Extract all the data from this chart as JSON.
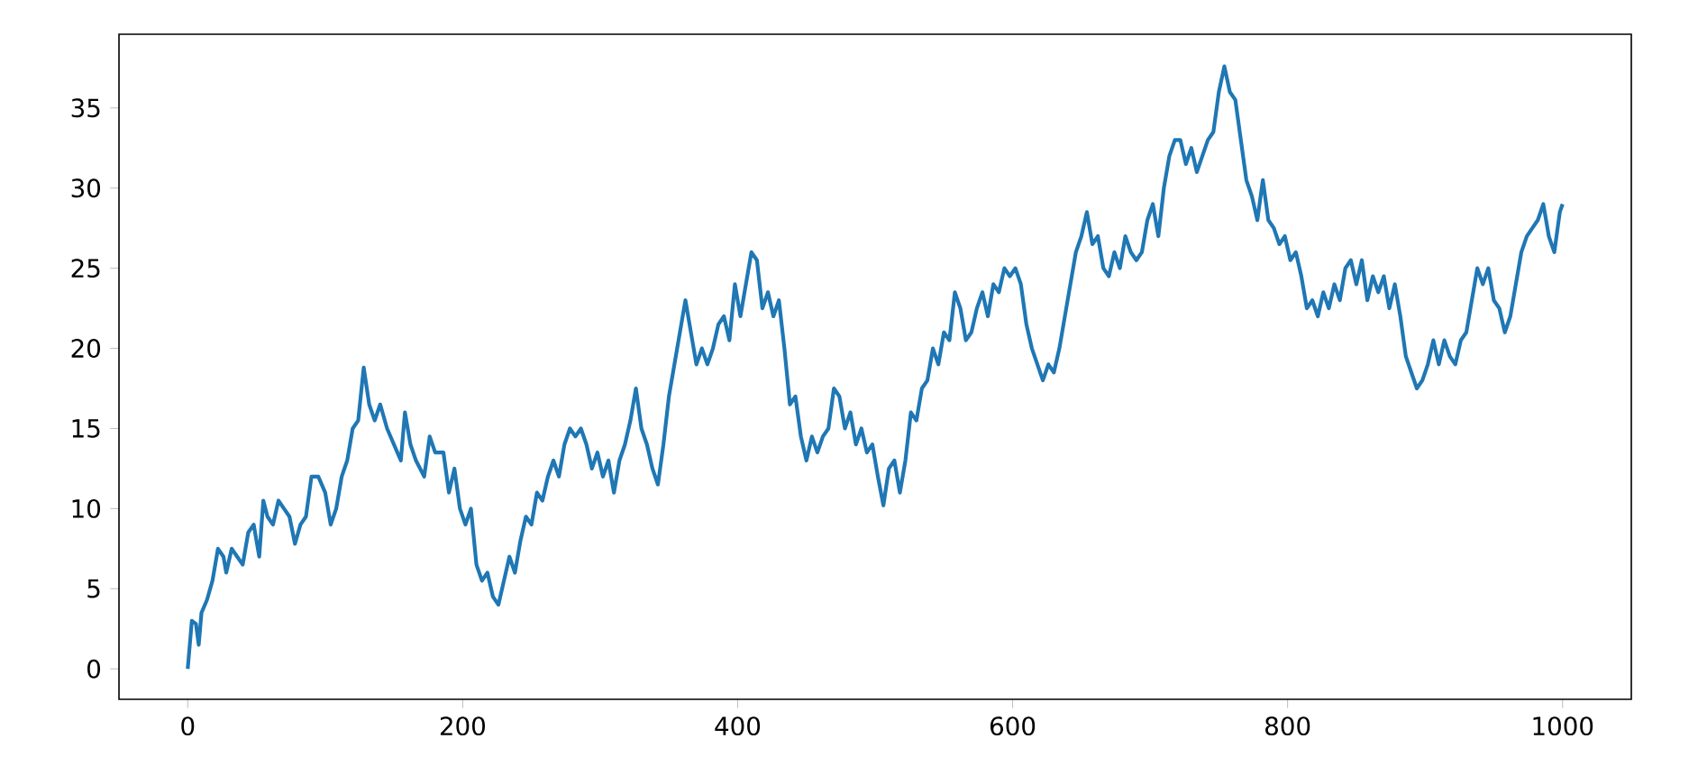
{
  "chart_data": {
    "type": "line",
    "color": "#1f77b4",
    "xlim": [
      -50,
      1050
    ],
    "ylim": [
      -1.9,
      39.6
    ],
    "xticks": [
      0,
      200,
      400,
      600,
      800,
      1000
    ],
    "yticks": [
      0,
      5,
      10,
      15,
      20,
      25,
      30,
      35
    ],
    "x": [
      0,
      3,
      6,
      8,
      10,
      14,
      18,
      22,
      26,
      28,
      32,
      36,
      40,
      44,
      48,
      52,
      55,
      58,
      62,
      66,
      70,
      74,
      78,
      82,
      86,
      90,
      95,
      100,
      104,
      108,
      112,
      116,
      120,
      124,
      128,
      132,
      136,
      140,
      145,
      150,
      155,
      158,
      162,
      166,
      172,
      176,
      180,
      186,
      190,
      194,
      198,
      202,
      206,
      210,
      214,
      218,
      222,
      226,
      230,
      234,
      238,
      242,
      246,
      250,
      254,
      258,
      262,
      266,
      270,
      274,
      278,
      282,
      286,
      290,
      294,
      298,
      302,
      306,
      310,
      314,
      318,
      322,
      326,
      330,
      334,
      338,
      342,
      346,
      350,
      354,
      358,
      362,
      366,
      370,
      374,
      378,
      382,
      386,
      390,
      394,
      398,
      402,
      406,
      410,
      414,
      418,
      422,
      426,
      430,
      434,
      438,
      442,
      446,
      450,
      454,
      458,
      462,
      466,
      470,
      474,
      478,
      482,
      486,
      490,
      494,
      498,
      502,
      506,
      510,
      514,
      518,
      522,
      526,
      530,
      534,
      538,
      542,
      546,
      550,
      554,
      558,
      562,
      566,
      570,
      574,
      578,
      582,
      586,
      590,
      594,
      598,
      602,
      606,
      610,
      614,
      618,
      622,
      626,
      630,
      634,
      638,
      642,
      646,
      650,
      654,
      658,
      662,
      666,
      670,
      674,
      678,
      682,
      686,
      690,
      694,
      698,
      702,
      706,
      710,
      714,
      718,
      722,
      726,
      730,
      734,
      738,
      742,
      746,
      750,
      754,
      758,
      762,
      766,
      770,
      774,
      778,
      782,
      786,
      790,
      794,
      798,
      802,
      806,
      810,
      814,
      818,
      822,
      826,
      830,
      834,
      838,
      842,
      846,
      850,
      854,
      858,
      862,
      866,
      870,
      874,
      878,
      882,
      886,
      890,
      894,
      898,
      902,
      906,
      910,
      914,
      918,
      922,
      926,
      930,
      934,
      938,
      942,
      946,
      950,
      954,
      958,
      962,
      966,
      970,
      974,
      978,
      982,
      986,
      990,
      994,
      998,
      1000
    ],
    "values": [
      0,
      3,
      2.8,
      1.5,
      3.5,
      4.3,
      5.5,
      7.5,
      7,
      6,
      7.5,
      7,
      6.5,
      8.5,
      9,
      7,
      10.5,
      9.5,
      9,
      10.5,
      10,
      9.5,
      7.8,
      9,
      9.5,
      12,
      12,
      11,
      9,
      10,
      12,
      13,
      15,
      15.5,
      18.8,
      16.5,
      15.5,
      16.5,
      15,
      14,
      13,
      16,
      14,
      13,
      12,
      14.5,
      13.5,
      13.5,
      11,
      12.5,
      10,
      9,
      10,
      6.5,
      5.5,
      6,
      4.5,
      4,
      5.5,
      7,
      6,
      8,
      9.5,
      9,
      11,
      10.5,
      12,
      13,
      12,
      14,
      15,
      14.5,
      15,
      14,
      12.5,
      13.5,
      12,
      13,
      11,
      13,
      14,
      15.5,
      17.5,
      15,
      14,
      12.5,
      11.5,
      14,
      17,
      19,
      21,
      23,
      21,
      19,
      20,
      19,
      20,
      21.5,
      22,
      20.5,
      24,
      22,
      24,
      26,
      25.5,
      22.5,
      23.5,
      22,
      23,
      20,
      16.5,
      17,
      14.5,
      13,
      14.5,
      13.5,
      14.5,
      15,
      17.5,
      17,
      15,
      16,
      14,
      15,
      13.5,
      14,
      12,
      10.2,
      12.5,
      13,
      11,
      13,
      16,
      15.5,
      17.5,
      18,
      20,
      19,
      21,
      20.5,
      23.5,
      22.5,
      20.5,
      21,
      22.5,
      23.5,
      22,
      24,
      23.5,
      25,
      24.5,
      25,
      24,
      21.5,
      20,
      19,
      18,
      19,
      18.5,
      20,
      22,
      24,
      26,
      27,
      28.5,
      26.5,
      27,
      25,
      24.5,
      26,
      25,
      27,
      26,
      25.5,
      26,
      28,
      29,
      27,
      30,
      32,
      33,
      33,
      31.5,
      32.5,
      31,
      32,
      33,
      33.5,
      36,
      37.6,
      36,
      35.5,
      33,
      30.5,
      29.5,
      28,
      30.5,
      28,
      27.5,
      26.5,
      27,
      25.5,
      26,
      24.5,
      22.5,
      23,
      22,
      23.5,
      22.5,
      24,
      23,
      25,
      25.5,
      24,
      25.5,
      23,
      24.5,
      23.5,
      24.5,
      22.5,
      24,
      22,
      19.5,
      18.5,
      17.5,
      18,
      19,
      20.5,
      19,
      20.5,
      19.5,
      19,
      20.5,
      21,
      23,
      25,
      24,
      25,
      23,
      22.5,
      21,
      22,
      24,
      26,
      27,
      27.5,
      28,
      29,
      27,
      26,
      28.5,
      29
    ]
  }
}
